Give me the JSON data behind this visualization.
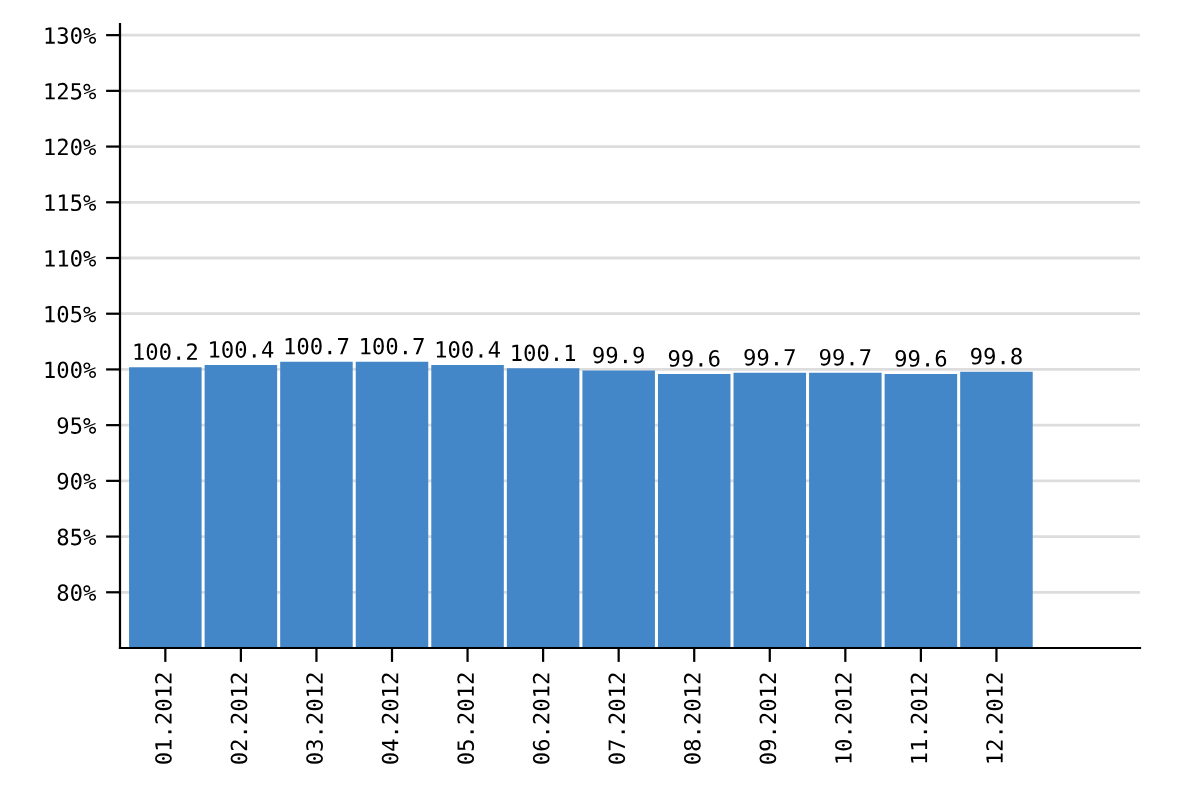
{
  "chart_data": {
    "type": "bar",
    "categories": [
      "01.2012",
      "02.2012",
      "03.2012",
      "04.2012",
      "05.2012",
      "06.2012",
      "07.2012",
      "08.2012",
      "09.2012",
      "10.2012",
      "11.2012",
      "12.2012"
    ],
    "values": [
      100.2,
      100.4,
      100.7,
      100.7,
      100.4,
      100.1,
      99.9,
      99.6,
      99.7,
      99.7,
      99.6,
      99.8
    ],
    "color": "#4487c8",
    "ylim": [
      75,
      131
    ],
    "yticks": [
      {
        "value": 80,
        "label": "80%"
      },
      {
        "value": 85,
        "label": "85%"
      },
      {
        "value": 90,
        "label": "90%"
      },
      {
        "value": 95,
        "label": "95%"
      },
      {
        "value": 100,
        "label": "100%"
      },
      {
        "value": 105,
        "label": "105%"
      },
      {
        "value": 110,
        "label": "110%"
      },
      {
        "value": 115,
        "label": "115%"
      },
      {
        "value": 120,
        "label": "120%"
      },
      {
        "value": 125,
        "label": "125%"
      },
      {
        "value": 130,
        "label": "130%"
      }
    ],
    "grid": "y",
    "data_labels": true
  }
}
